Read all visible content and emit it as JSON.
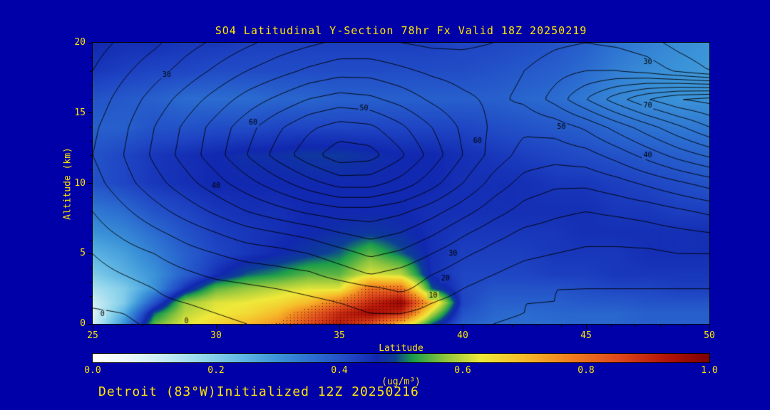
{
  "footer": {
    "text": "Detroit (83°W)Initialized 12Z 20250216"
  },
  "colors": {
    "background": "#0000A8",
    "label_text": "#FFE600",
    "contour_line": "#000000"
  },
  "chart_data": {
    "type": "heatmap",
    "title": "SO4 Latitudinal Y-Section 78hr  Fx Valid 18Z 20250219",
    "xlabel": "Latitude",
    "ylabel": "Altitude (km)",
    "xlim": [
      25,
      50
    ],
    "ylim": [
      0,
      20
    ],
    "xticks": [
      25,
      30,
      35,
      40,
      45,
      50
    ],
    "yticks": [
      0,
      5,
      10,
      15,
      20
    ],
    "colorbar": {
      "ticks": [
        "0.0",
        "0.2",
        "0.4",
        "0.6",
        "0.8",
        "1.0"
      ],
      "units": "(ug/m³)",
      "min": 0.0,
      "max": 1.0
    },
    "colormap_stops": [
      [
        0.0,
        "#ffffff"
      ],
      [
        0.06,
        "#e9f7fb"
      ],
      [
        0.12,
        "#c2eaf4"
      ],
      [
        0.18,
        "#92d6ec"
      ],
      [
        0.24,
        "#62b8e4"
      ],
      [
        0.3,
        "#3b93d8"
      ],
      [
        0.36,
        "#2b6cd0"
      ],
      [
        0.42,
        "#1f46c4"
      ],
      [
        0.46,
        "#1128b0"
      ],
      [
        0.49,
        "#0d3f96"
      ],
      [
        0.52,
        "#1d9e4a"
      ],
      [
        0.57,
        "#8ac43e"
      ],
      [
        0.63,
        "#efe93a"
      ],
      [
        0.7,
        "#f6ba2a"
      ],
      [
        0.77,
        "#f08220"
      ],
      [
        0.85,
        "#e04a1c"
      ],
      [
        0.93,
        "#b31408"
      ],
      [
        1.0,
        "#7d0000"
      ]
    ],
    "grid": {
      "lats": [
        25,
        26.25,
        27.5,
        28.75,
        30,
        31.25,
        32.5,
        33.75,
        35,
        36.25,
        37.5,
        38.75,
        40,
        41.25,
        42.5,
        43.75,
        45,
        46.25,
        47.5,
        48.75,
        50
      ],
      "alts": [
        0,
        0.75,
        1.5,
        2.5,
        3.5,
        5,
        6.5,
        8,
        10,
        12,
        14,
        16,
        18,
        20
      ],
      "so4_ug_m3": [
        [
          0.1,
          0.3,
          0.55,
          0.62,
          0.66,
          0.7,
          0.75,
          0.85,
          0.92,
          0.85,
          0.7,
          0.5,
          0.38,
          0.36,
          0.36,
          0.36,
          0.37,
          0.37,
          0.38,
          0.38,
          0.38
        ],
        [
          0.08,
          0.25,
          0.5,
          0.6,
          0.63,
          0.65,
          0.7,
          0.8,
          0.9,
          0.95,
          0.9,
          0.6,
          0.4,
          0.37,
          0.36,
          0.37,
          0.37,
          0.37,
          0.38,
          0.38,
          0.38
        ],
        [
          0.1,
          0.2,
          0.4,
          0.58,
          0.62,
          0.63,
          0.65,
          0.7,
          0.8,
          0.9,
          0.97,
          0.7,
          0.42,
          0.38,
          0.38,
          0.38,
          0.39,
          0.39,
          0.4,
          0.4,
          0.4
        ],
        [
          0.15,
          0.2,
          0.3,
          0.45,
          0.55,
          0.58,
          0.6,
          0.62,
          0.62,
          0.8,
          0.8,
          0.5,
          0.42,
          0.4,
          0.4,
          0.4,
          0.41,
          0.42,
          0.42,
          0.43,
          0.43
        ],
        [
          0.2,
          0.25,
          0.3,
          0.38,
          0.45,
          0.5,
          0.52,
          0.55,
          0.55,
          0.62,
          0.6,
          0.45,
          0.42,
          0.42,
          0.42,
          0.43,
          0.43,
          0.44,
          0.44,
          0.44,
          0.44
        ],
        [
          0.25,
          0.28,
          0.33,
          0.38,
          0.42,
          0.44,
          0.46,
          0.48,
          0.5,
          0.55,
          0.5,
          0.45,
          0.43,
          0.43,
          0.43,
          0.44,
          0.44,
          0.44,
          0.45,
          0.45,
          0.45
        ],
        [
          0.3,
          0.32,
          0.36,
          0.4,
          0.43,
          0.44,
          0.45,
          0.46,
          0.47,
          0.48,
          0.47,
          0.45,
          0.44,
          0.44,
          0.44,
          0.44,
          0.45,
          0.45,
          0.45,
          0.45,
          0.45
        ],
        [
          0.34,
          0.36,
          0.4,
          0.42,
          0.44,
          0.45,
          0.45,
          0.46,
          0.46,
          0.46,
          0.46,
          0.45,
          0.45,
          0.45,
          0.45,
          0.45,
          0.45,
          0.44,
          0.44,
          0.43,
          0.43
        ],
        [
          0.4,
          0.42,
          0.44,
          0.45,
          0.46,
          0.46,
          0.46,
          0.46,
          0.46,
          0.46,
          0.46,
          0.46,
          0.45,
          0.45,
          0.45,
          0.44,
          0.44,
          0.43,
          0.42,
          0.41,
          0.4
        ],
        [
          0.4,
          0.42,
          0.44,
          0.45,
          0.46,
          0.47,
          0.47,
          0.48,
          0.48,
          0.47,
          0.46,
          0.46,
          0.45,
          0.44,
          0.43,
          0.42,
          0.41,
          0.4,
          0.39,
          0.38,
          0.37
        ],
        [
          0.38,
          0.38,
          0.4,
          0.4,
          0.41,
          0.41,
          0.42,
          0.42,
          0.42,
          0.42,
          0.42,
          0.42,
          0.42,
          0.41,
          0.4,
          0.39,
          0.38,
          0.36,
          0.35,
          0.34,
          0.34
        ],
        [
          0.4,
          0.39,
          0.38,
          0.36,
          0.36,
          0.36,
          0.37,
          0.37,
          0.38,
          0.38,
          0.38,
          0.38,
          0.38,
          0.38,
          0.37,
          0.36,
          0.34,
          0.32,
          0.31,
          0.3,
          0.3
        ],
        [
          0.44,
          0.43,
          0.42,
          0.42,
          0.41,
          0.41,
          0.41,
          0.41,
          0.41,
          0.41,
          0.41,
          0.41,
          0.41,
          0.4,
          0.39,
          0.38,
          0.36,
          0.33,
          0.31,
          0.3,
          0.29
        ],
        [
          0.46,
          0.45,
          0.45,
          0.44,
          0.44,
          0.43,
          0.43,
          0.43,
          0.43,
          0.43,
          0.43,
          0.43,
          0.42,
          0.42,
          0.41,
          0.4,
          0.38,
          0.35,
          0.33,
          0.31,
          0.3
        ]
      ]
    },
    "contour_overlay": {
      "levels_step": 5,
      "values": [
        [
          -2,
          -1,
          1,
          3,
          4,
          5,
          6,
          7,
          8,
          9,
          9,
          8,
          6,
          5,
          4,
          4,
          4,
          4,
          4,
          4,
          4
        ],
        [
          -1,
          0,
          2,
          4,
          5,
          6,
          7,
          8,
          9,
          10,
          10,
          9,
          7,
          6,
          5,
          4,
          4,
          4,
          4,
          4,
          4
        ],
        [
          1,
          2,
          4,
          5,
          6,
          7,
          8,
          9,
          10,
          11,
          12,
          10,
          8,
          6,
          5,
          5,
          4,
          4,
          4,
          4,
          4
        ],
        [
          2,
          3,
          5,
          7,
          8,
          9,
          10,
          11,
          12,
          14,
          16,
          13,
          10,
          8,
          6,
          5,
          5,
          5,
          5,
          5,
          5
        ],
        [
          3,
          5,
          7,
          9,
          11,
          12,
          13,
          14,
          17,
          20,
          18,
          15,
          12,
          10,
          8,
          7,
          6,
          6,
          6,
          6,
          6
        ],
        [
          5,
          8,
          10,
          13,
          15,
          17,
          18,
          20,
          23,
          26,
          24,
          20,
          16,
          13,
          11,
          10,
          9,
          9,
          9,
          10,
          10
        ],
        [
          8,
          11,
          14,
          17,
          20,
          23,
          25,
          27,
          30,
          32,
          30,
          26,
          21,
          17,
          14,
          13,
          12,
          12,
          13,
          14,
          15
        ],
        [
          10,
          14,
          18,
          22,
          26,
          30,
          33,
          36,
          38,
          38,
          36,
          32,
          27,
          22,
          18,
          16,
          15,
          16,
          17,
          19,
          21
        ],
        [
          13,
          18,
          23,
          28,
          33,
          38,
          43,
          48,
          52,
          52,
          48,
          42,
          35,
          28,
          23,
          21,
          21,
          23,
          26,
          29,
          32
        ],
        [
          15,
          20,
          26,
          32,
          38,
          45,
          52,
          58,
          63,
          62,
          56,
          48,
          40,
          33,
          28,
          27,
          28,
          32,
          37,
          42,
          46
        ],
        [
          14,
          19,
          25,
          31,
          37,
          43,
          49,
          54,
          57,
          56,
          51,
          45,
          39,
          34,
          31,
          32,
          36,
          42,
          48,
          54,
          60
        ],
        [
          12,
          17,
          22,
          27,
          32,
          37,
          41,
          45,
          47,
          46,
          43,
          39,
          36,
          34,
          36,
          42,
          50,
          58,
          65,
          70,
          72
        ],
        [
          10,
          14,
          18,
          22,
          26,
          30,
          33,
          36,
          38,
          38,
          36,
          34,
          33,
          33,
          35,
          38,
          40,
          40,
          38,
          34,
          30
        ],
        [
          8,
          11,
          14,
          18,
          21,
          24,
          27,
          29,
          31,
          31,
          30,
          29,
          29,
          30,
          32,
          34,
          35,
          34,
          32,
          28,
          25
        ]
      ]
    },
    "contour_labels": [
      {
        "value": "0",
        "lat": 25.4,
        "alt": 0.7
      },
      {
        "value": "0",
        "lat": 28.8,
        "alt": 0.2
      },
      {
        "value": "10",
        "lat": 38.8,
        "alt": 2.0
      },
      {
        "value": "20",
        "lat": 39.3,
        "alt": 3.2
      },
      {
        "value": "30",
        "lat": 39.6,
        "alt": 5.0
      },
      {
        "value": "40",
        "lat": 30.0,
        "alt": 9.8
      },
      {
        "value": "50",
        "lat": 36.0,
        "alt": 15.3
      },
      {
        "value": "60",
        "lat": 31.5,
        "alt": 14.3
      },
      {
        "value": "60",
        "lat": 40.6,
        "alt": 13.0
      },
      {
        "value": "30",
        "lat": 28.0,
        "alt": 17.7
      },
      {
        "value": "30",
        "lat": 47.5,
        "alt": 18.6
      },
      {
        "value": "70",
        "lat": 47.5,
        "alt": 15.5
      },
      {
        "value": "40",
        "lat": 47.5,
        "alt": 12.0
      },
      {
        "value": "50",
        "lat": 44.0,
        "alt": 14.0
      }
    ]
  }
}
